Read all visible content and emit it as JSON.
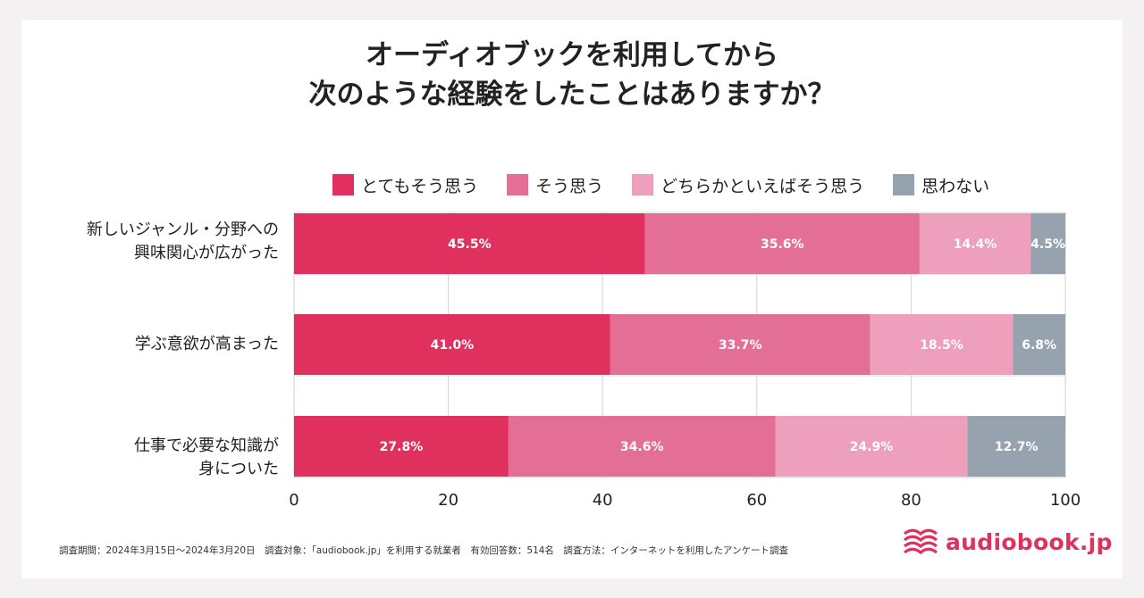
{
  "title_line1": "オーディオブックを利用してから",
  "title_line2": "次のような経験をしたことはありますか？",
  "chart_data": {
    "type": "bar",
    "orientation": "horizontal-stacked",
    "title": "オーディオブックを利用してから 次のような経験をしたことはありますか？",
    "categories": [
      [
        "新しいジャンル・分野への",
        "興味関心が広がった"
      ],
      [
        "学ぶ意欲が高まった"
      ],
      [
        "仕事で必要な知識が",
        "身についた"
      ]
    ],
    "series": [
      {
        "name": "とてもそう思う",
        "color": "#e0315e",
        "values": [
          45.5,
          41.0,
          27.8
        ]
      },
      {
        "name": "そう思う",
        "color": "#e46f96",
        "values": [
          35.6,
          33.7,
          34.6
        ]
      },
      {
        "name": "どちらかといえばそう思う",
        "color": "#ed9fbb",
        "values": [
          14.4,
          18.5,
          24.9
        ]
      },
      {
        "name": "思わない",
        "color": "#96a2ad",
        "values": [
          4.5,
          6.8,
          12.7
        ]
      }
    ],
    "xlim": [
      0,
      100
    ],
    "xticks": [
      0,
      20,
      40,
      60,
      80,
      100
    ],
    "value_suffix": "%",
    "grid": true,
    "legend": "top"
  },
  "footnote": "調査期間：2024年3月15日〜2024年3月20日　調査対象：「audiobook.jp」を利用する就業者　有効回答数：514名　調査方法：インターネットを利用したアンケート調査",
  "logo_text": "audiobook.jp",
  "colors": {
    "brand": "#e0315e",
    "background": "#f3f1f1"
  }
}
